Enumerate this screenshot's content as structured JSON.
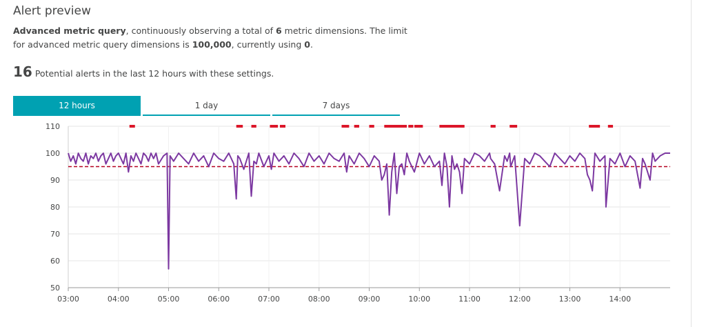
{
  "header": {
    "title": "Alert preview",
    "desc_part1": "Advanced metric query",
    "desc_part2": ", continuously observing a total of ",
    "desc_part3": "6",
    "desc_part4": " metric dimensions. The limit for advanced metric query dimensions is ",
    "desc_part5": "100,000",
    "desc_part6": ", currently using ",
    "desc_part7": "0",
    "desc_part8": "."
  },
  "summary": {
    "count": "16",
    "text": "Potential alerts in the last 12 hours with these settings."
  },
  "tabs": [
    {
      "label": "12 hours",
      "active": true
    },
    {
      "label": "1 day",
      "active": false
    },
    {
      "label": "7 days",
      "active": false
    }
  ],
  "colors": {
    "accent": "#00a1b2",
    "series": "#7c38a1",
    "threshold": "#b5001f",
    "alert": "#dc172a"
  },
  "chart_data": {
    "type": "line",
    "x_ticks": [
      "03:00",
      "04:00",
      "05:00",
      "06:00",
      "07:00",
      "08:00",
      "09:00",
      "10:00",
      "11:00",
      "12:00",
      "13:00",
      "14:00"
    ],
    "y_ticks": [
      50,
      60,
      70,
      80,
      90,
      100,
      110
    ],
    "ylim": [
      50,
      110
    ],
    "xlim_hours": [
      3.0,
      15.0
    ],
    "threshold": 95,
    "alert_periods": [
      [
        4.22,
        4.33
      ],
      [
        6.35,
        6.48
      ],
      [
        6.65,
        6.75
      ],
      [
        7.02,
        7.18
      ],
      [
        7.22,
        7.33
      ],
      [
        8.45,
        8.6
      ],
      [
        8.7,
        8.8
      ],
      [
        9.0,
        9.1
      ],
      [
        9.3,
        9.75
      ],
      [
        9.9,
        10.07
      ],
      [
        10.4,
        10.9
      ],
      [
        11.42,
        11.52
      ],
      [
        11.8,
        11.95
      ],
      [
        13.38,
        13.6
      ],
      [
        13.76,
        13.86
      ],
      [
        9.78,
        9.88
      ]
    ],
    "series": [
      {
        "x_hours": [
          3.0,
          3.05,
          3.1,
          3.15,
          3.2,
          3.25,
          3.3,
          3.35,
          3.4,
          3.45,
          3.5,
          3.55,
          3.6,
          3.65,
          3.7,
          3.75,
          3.8,
          3.85,
          3.9,
          3.95,
          4.0,
          4.05,
          4.1,
          4.15,
          4.2,
          4.25,
          4.3,
          4.35,
          4.4,
          4.45,
          4.5,
          4.55,
          4.6,
          4.65,
          4.7,
          4.75,
          4.8,
          4.9,
          4.97,
          5.0,
          5.03,
          5.1,
          5.2,
          5.3,
          5.4,
          5.5,
          5.6,
          5.7,
          5.8,
          5.9,
          6.0,
          6.1,
          6.2,
          6.3,
          6.35,
          6.38,
          6.42,
          6.5,
          6.6,
          6.65,
          6.7,
          6.75,
          6.8,
          6.9,
          7.0,
          7.05,
          7.1,
          7.2,
          7.3,
          7.4,
          7.5,
          7.6,
          7.7,
          7.8,
          7.9,
          8.0,
          8.1,
          8.2,
          8.3,
          8.4,
          8.5,
          8.55,
          8.6,
          8.7,
          8.8,
          8.9,
          9.0,
          9.1,
          9.2,
          9.25,
          9.3,
          9.35,
          9.4,
          9.45,
          9.5,
          9.55,
          9.6,
          9.65,
          9.7,
          9.75,
          9.8,
          9.9,
          10.0,
          10.1,
          10.2,
          10.3,
          10.4,
          10.45,
          10.5,
          10.55,
          10.6,
          10.65,
          10.7,
          10.75,
          10.8,
          10.85,
          10.9,
          11.0,
          11.1,
          11.2,
          11.3,
          11.4,
          11.42,
          11.5,
          11.6,
          11.7,
          11.75,
          11.8,
          11.82,
          11.9,
          12.0,
          12.1,
          12.2,
          12.3,
          12.4,
          12.5,
          12.6,
          12.7,
          12.8,
          12.9,
          13.0,
          13.1,
          13.2,
          13.3,
          13.35,
          13.4,
          13.45,
          13.5,
          13.6,
          13.7,
          13.72,
          13.8,
          13.9,
          14.0,
          14.1,
          14.2,
          14.3,
          14.4,
          14.45,
          14.5,
          14.6,
          14.65,
          14.7,
          14.8,
          14.9,
          15.0
        ],
        "values": [
          100,
          97,
          99,
          96,
          100,
          98,
          97,
          100,
          96,
          99,
          98,
          100,
          97,
          99,
          100,
          96,
          98,
          100,
          97,
          99,
          100,
          98,
          96,
          100,
          93,
          99,
          97,
          100,
          98,
          96,
          100,
          99,
          97,
          100,
          98,
          100,
          96,
          99,
          100,
          57,
          99,
          97,
          100,
          98,
          96,
          100,
          97,
          99,
          95,
          100,
          98,
          97,
          100,
          96,
          83,
          99,
          98,
          94,
          100,
          84,
          97,
          96,
          100,
          95,
          99,
          94,
          100,
          97,
          99,
          96,
          100,
          98,
          95,
          100,
          97,
          99,
          96,
          100,
          98,
          97,
          100,
          93,
          99,
          96,
          100,
          98,
          95,
          99,
          97,
          90,
          92,
          96,
          77,
          93,
          100,
          85,
          95,
          96,
          92,
          100,
          97,
          93,
          100,
          96,
          99,
          95,
          97,
          88,
          100,
          95,
          80,
          99,
          94,
          96,
          93,
          85,
          98,
          96,
          100,
          99,
          97,
          100,
          98,
          96,
          86,
          99,
          97,
          100,
          95,
          99,
          73,
          98,
          96,
          100,
          99,
          97,
          95,
          100,
          98,
          96,
          99,
          97,
          100,
          98,
          92,
          90,
          86,
          100,
          97,
          99,
          80,
          98,
          96,
          100,
          95,
          99,
          97,
          87,
          98,
          96,
          90,
          100,
          97,
          99,
          100,
          100
        ]
      }
    ]
  }
}
